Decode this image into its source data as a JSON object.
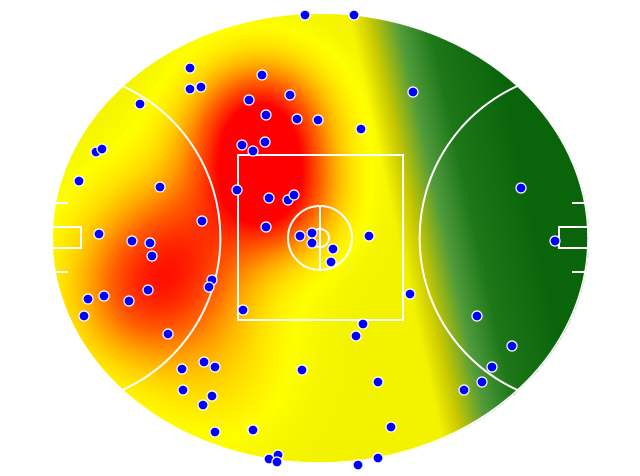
{
  "chart_data": {
    "type": "heatmap",
    "title": "",
    "xlabel": "",
    "ylabel": "",
    "background": "oval field",
    "colors": {
      "low": "#0a6a0a",
      "mid_low": "#4a9a3a",
      "mid": "#ffff00",
      "mid_high": "#ffa000",
      "high": "#ff0000",
      "point_fill": "#0000ff",
      "point_stroke": "#ffffff",
      "lines": "#ffffff"
    },
    "xlim": [
      -134,
      134
    ],
    "ylim": [
      -112.5,
      112.5
    ],
    "points": [
      [
        -7.5,
        111.5
      ],
      [
        17,
        111.5
      ],
      [
        46.5,
        73
      ],
      [
        -65,
        85
      ],
      [
        -29,
        81.5
      ],
      [
        -65,
        74.5
      ],
      [
        -59.5,
        75.5
      ],
      [
        -90,
        67
      ],
      [
        -35.5,
        69
      ],
      [
        -15,
        71.5
      ],
      [
        -27,
        61.5
      ],
      [
        -11.5,
        59.5
      ],
      [
        -1,
        59
      ],
      [
        20.5,
        54.5
      ],
      [
        -112,
        43
      ],
      [
        -109,
        44.5
      ],
      [
        -39,
        46.5
      ],
      [
        -33.5,
        43.5
      ],
      [
        -27.5,
        48
      ],
      [
        -120.5,
        28.5
      ],
      [
        -80,
        25.5
      ],
      [
        -41.5,
        24
      ],
      [
        -25.5,
        20
      ],
      [
        -16,
        19
      ],
      [
        -13,
        21.5
      ],
      [
        100.5,
        25
      ],
      [
        -59,
        8.5
      ],
      [
        -27,
        5.5
      ],
      [
        -110.5,
        2
      ],
      [
        -94,
        -1.5
      ],
      [
        -85,
        -2.5
      ],
      [
        -84,
        -9
      ],
      [
        -10,
        1
      ],
      [
        -4,
        2.5
      ],
      [
        -4,
        -2.5
      ],
      [
        6.5,
        -5.5
      ],
      [
        5.5,
        -12
      ],
      [
        24.5,
        1
      ],
      [
        117.5,
        -1.5
      ],
      [
        -54,
        -21
      ],
      [
        -55.5,
        -24.5
      ],
      [
        -86,
        -26
      ],
      [
        -116,
        -30.5
      ],
      [
        -108,
        -29
      ],
      [
        -95.5,
        -31.5
      ],
      [
        -118,
        -39
      ],
      [
        -38.5,
        -36
      ],
      [
        45,
        -28
      ],
      [
        78.5,
        -39
      ],
      [
        21.5,
        -43
      ],
      [
        18,
        -49
      ],
      [
        -76,
        -48
      ],
      [
        96,
        -54
      ],
      [
        -58,
        -62
      ],
      [
        -52.5,
        -64.5
      ],
      [
        -69,
        -65.5
      ],
      [
        -9,
        -66
      ],
      [
        86,
        -64.5
      ],
      [
        29,
        -72
      ],
      [
        81,
        -72
      ],
      [
        72,
        -76
      ],
      [
        -68.5,
        -76
      ],
      [
        -54,
        -79
      ],
      [
        -58.5,
        -83.5
      ],
      [
        35.5,
        -94.5
      ],
      [
        -52.5,
        -97
      ],
      [
        -33.5,
        -96
      ],
      [
        -21,
        -108.5
      ],
      [
        -25.5,
        -110.5
      ],
      [
        -21.5,
        -112
      ],
      [
        29,
        -110
      ],
      [
        19,
        -113.5
      ]
    ]
  }
}
